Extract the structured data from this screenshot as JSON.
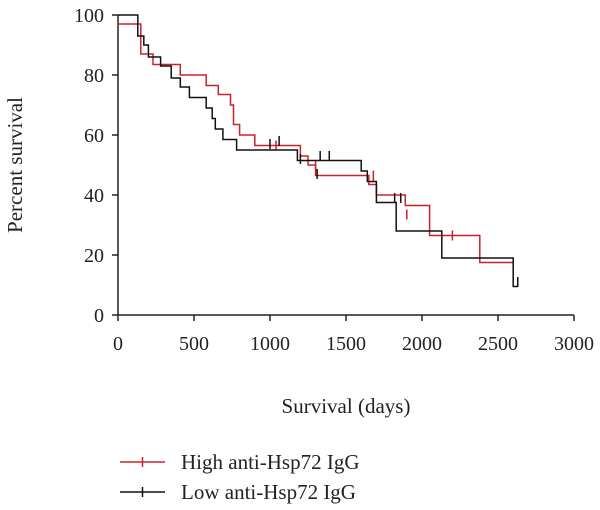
{
  "chart_data": {
    "type": "line",
    "subtype": "kaplan-meier step",
    "xlabel": "Survival (days)",
    "ylabel": "Percent survival",
    "xlim": [
      0,
      3000
    ],
    "ylim": [
      0,
      100
    ],
    "xticks": [
      0,
      500,
      1000,
      1500,
      2000,
      2500,
      3000
    ],
    "yticks": [
      0,
      20,
      40,
      60,
      80,
      100
    ],
    "grid": false,
    "legend_position": "bottom-left",
    "series": [
      {
        "name": "High anti-Hsp72 IgG",
        "color": "#c8232c",
        "steps": [
          [
            0,
            97
          ],
          [
            150,
            97
          ],
          [
            150,
            87
          ],
          [
            230,
            87
          ],
          [
            230,
            83.5
          ],
          [
            410,
            83.5
          ],
          [
            410,
            80
          ],
          [
            580,
            80
          ],
          [
            580,
            76.5
          ],
          [
            660,
            76.5
          ],
          [
            660,
            73.5
          ],
          [
            740,
            73.5
          ],
          [
            740,
            70
          ],
          [
            760,
            70
          ],
          [
            760,
            63.5
          ],
          [
            800,
            63.5
          ],
          [
            800,
            60
          ],
          [
            900,
            60
          ],
          [
            900,
            56.5
          ],
          [
            1200,
            56.5
          ],
          [
            1200,
            53
          ],
          [
            1250,
            53
          ],
          [
            1250,
            50
          ],
          [
            1300,
            50
          ],
          [
            1300,
            46.5
          ],
          [
            1650,
            46.5
          ],
          [
            1650,
            43.5
          ],
          [
            1700,
            43.5
          ],
          [
            1700,
            40
          ],
          [
            1890,
            40
          ],
          [
            1890,
            36.5
          ],
          [
            2050,
            36.5
          ],
          [
            2050,
            26.5
          ],
          [
            2380,
            26.5
          ],
          [
            2380,
            17.5
          ],
          [
            2600,
            17.5
          ]
        ],
        "censored": [
          [
            1040,
            56.5
          ],
          [
            1300,
            50
          ],
          [
            1680,
            46.5
          ],
          [
            1900,
            33.5
          ],
          [
            2200,
            26.5
          ]
        ]
      },
      {
        "name": "Low anti-Hsp72 IgG",
        "color": "#111111",
        "steps": [
          [
            0,
            100
          ],
          [
            130,
            100
          ],
          [
            130,
            93
          ],
          [
            170,
            93
          ],
          [
            170,
            90
          ],
          [
            200,
            90
          ],
          [
            200,
            86
          ],
          [
            280,
            86
          ],
          [
            280,
            83
          ],
          [
            350,
            83
          ],
          [
            350,
            79
          ],
          [
            410,
            79
          ],
          [
            410,
            76
          ],
          [
            470,
            76
          ],
          [
            470,
            72.5
          ],
          [
            580,
            72.5
          ],
          [
            580,
            69
          ],
          [
            620,
            69
          ],
          [
            620,
            65.5
          ],
          [
            640,
            65.5
          ],
          [
            640,
            62
          ],
          [
            690,
            62
          ],
          [
            690,
            58.5
          ],
          [
            780,
            58.5
          ],
          [
            780,
            55
          ],
          [
            1180,
            55
          ],
          [
            1180,
            51.5
          ],
          [
            1600,
            51.5
          ],
          [
            1600,
            48
          ],
          [
            1640,
            48
          ],
          [
            1640,
            44.5
          ],
          [
            1700,
            44.5
          ],
          [
            1700,
            37.5
          ],
          [
            1830,
            37.5
          ],
          [
            1830,
            28
          ],
          [
            2130,
            28
          ],
          [
            2130,
            19
          ],
          [
            2600,
            19
          ],
          [
            2600,
            9.5
          ],
          [
            2630,
            9.5
          ]
        ],
        "censored": [
          [
            1000,
            57
          ],
          [
            1060,
            58
          ],
          [
            1200,
            52
          ],
          [
            1310,
            47
          ],
          [
            1330,
            53
          ],
          [
            1390,
            53
          ],
          [
            1820,
            39
          ],
          [
            1860,
            39
          ],
          [
            2630,
            11
          ]
        ]
      }
    ]
  }
}
